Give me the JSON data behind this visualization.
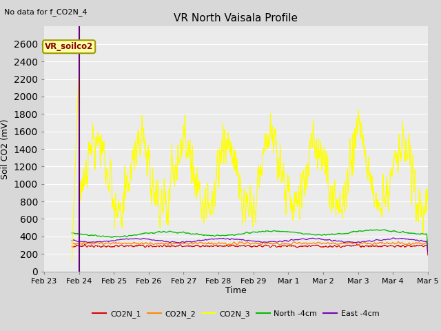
{
  "title": "VR North Vaisala Profile",
  "note": "No data for f_CO2N_4",
  "ylabel": "Soil CO2 (mV)",
  "xlabel": "Time",
  "label_box": "VR_soilco2",
  "ylim": [
    0,
    2800
  ],
  "yticks": [
    0,
    200,
    400,
    600,
    800,
    1000,
    1200,
    1400,
    1600,
    1800,
    2000,
    2200,
    2400,
    2600
  ],
  "xtick_labels": [
    "Feb 23",
    "Feb 24",
    "Feb 25",
    "Feb 26",
    "Feb 27",
    "Feb 28",
    "Feb 29",
    "Mar 1",
    "Mar 2",
    "Mar 3",
    "Mar 4",
    "Mar 5"
  ],
  "fig_bg": "#d8d8d8",
  "plot_bg": "#ebebeb",
  "grid_color": "#ffffff",
  "colors": {
    "CO2N_1": "#dd0000",
    "CO2N_2": "#ff8800",
    "CO2N_3": "#ffff00",
    "North_4cm": "#00bb00",
    "East_4cm": "#7700bb",
    "vertical_line": "#660077"
  },
  "legend": [
    {
      "label": "CO2N_1",
      "color": "#dd0000"
    },
    {
      "label": "CO2N_2",
      "color": "#ff8800"
    },
    {
      "label": "CO2N_3",
      "color": "#ffff00"
    },
    {
      "label": "North -4cm",
      "color": "#00bb00"
    },
    {
      "label": "East -4cm",
      "color": "#7700bb"
    }
  ]
}
